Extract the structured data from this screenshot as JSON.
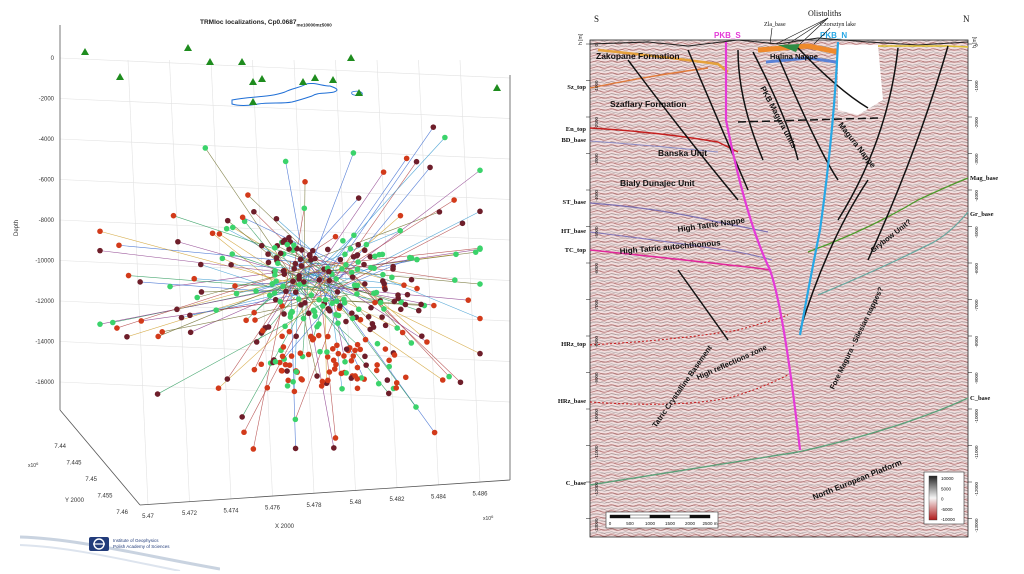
{
  "left_figure": {
    "title": "TRMloc localizations, Cp0.0687",
    "title_sub": "me10000",
    "title_sub2": "mz5000",
    "z_axis_label": "Depth",
    "x_axis_label": "X 2000",
    "y_axis_label": "Y 2000",
    "z_ticks": [
      "0",
      "-2000",
      "-4000",
      "-6000",
      "-8000",
      "-10000",
      "-12000",
      "-14000",
      "-16000"
    ],
    "x_ticks": [
      "5.47",
      "5.472",
      "5.474",
      "5.476",
      "5.478",
      "5.48",
      "5.482",
      "5.484",
      "5.486"
    ],
    "x_exponent": "x10",
    "x_exponent_power": "6",
    "y_ticks": [
      "7.44",
      "7.445",
      "7.45",
      "7.455",
      "7.46"
    ],
    "y_exponent": "x10",
    "y_exponent_power": "6",
    "colors": {
      "station": "#1e8c1e",
      "event_red": "#d23a1a",
      "event_dark": "#6e1e2a",
      "event_green": "#3bd36b",
      "lake": "#1f6fd6"
    },
    "logo": {
      "line1": "Institute of Geophysics",
      "line2": "Polish Academy of Sciences"
    }
  },
  "right_figure": {
    "compass_left": "S",
    "compass_right": "N",
    "top_labels": {
      "olistoliths": "Olistoliths",
      "czorsztyn_lake": "Czorsztyn lake",
      "zla_base": "Zla_base",
      "pkb_s": "PKB_S",
      "pkb_n": "PKB_N"
    },
    "units": {
      "zakopane": "Zakopane Formation",
      "szaflary": "Szaflary Formation",
      "hulina": "Hulina Nappe",
      "pkb_magura": "PKB Magura units",
      "banska": "Banska Unit",
      "bialy": "Bialy Dunajec Unit",
      "magura_nappe": "Magura Nappe",
      "high_tatric": "High Tatric Nappe",
      "high_tatric_auto": "High Tatric autochthonous",
      "grybow": "Grybow Unit?",
      "fore_magura": "Fore Magura - Silesian nappes?",
      "high_reflections": "High reflections zone",
      "tatric_basement": "Tatric Crystalline Basement",
      "north_european": "North European Platform"
    },
    "left_horizons": [
      "Sz_top",
      "En_top",
      "BD_base",
      "ST_base",
      "HT_base",
      "TC_top",
      "HRz_top",
      "HRz_base",
      "C_base"
    ],
    "right_horizons": [
      "Mag_base",
      "Gr_base",
      "C_base"
    ],
    "left_depth_ticks": [
      "0",
      "-1000",
      "-2000",
      "-3000",
      "-4000",
      "-5000",
      "-6000",
      "-7000",
      "-8000",
      "-9000",
      "-10000",
      "-11000",
      "-12000",
      "-13000"
    ],
    "right_depth_ticks": [
      "0",
      "-1000",
      "-2000",
      "-3000",
      "-4000",
      "-5000",
      "-6000",
      "-7000",
      "-8000",
      "-9000",
      "-10000",
      "-11000",
      "-12000",
      "-13000"
    ],
    "depth_unit_left": "h [m]",
    "depth_unit_right": "h [m]",
    "scale_ticks": [
      "0",
      "500",
      "1000",
      "1500",
      "2000",
      "2500 m"
    ],
    "colorbar_ticks": [
      "10000",
      "5000",
      "0",
      "-5000",
      "-10000"
    ],
    "colors": {
      "pkb_s": "#e43ad8",
      "pkb_n": "#27a8e6",
      "en_top": "#c41f1f",
      "tc_top": "#e0279a",
      "ht_base": "#7b6fb0",
      "mag_base": "#6fae3f",
      "gr_base": "#6aa8a0",
      "c_base": "#5ea07a",
      "hrz": "#c8191c"
    }
  }
}
